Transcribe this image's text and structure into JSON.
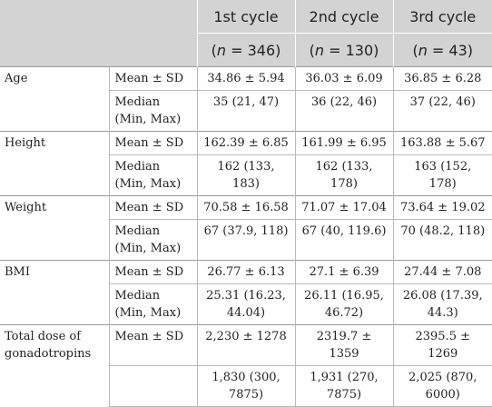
{
  "header": {
    "cycles": [
      {
        "label": "1st cycle",
        "n_prefix": "(",
        "n_symbol": "n",
        "n_value": " = 346)"
      },
      {
        "label": "2nd cycle",
        "n_prefix": "(",
        "n_symbol": "n",
        "n_value": " = 130)"
      },
      {
        "label": "3rd cycle",
        "n_prefix": "(",
        "n_symbol": "n",
        "n_value": " = 43)"
      }
    ]
  },
  "rows": [
    {
      "variable": "Age",
      "stat": "Mean ± SD",
      "values": [
        "34.86 ± 5.94",
        "36.03 ± 6.09",
        "36.85 ± 6.28"
      ]
    },
    {
      "variable": "",
      "stat": "Median (Min, Max)",
      "values": [
        "35 (21, 47)",
        "36 (22, 46)",
        "37 (22, 46)"
      ]
    },
    {
      "variable": "Height",
      "stat": "Mean ± SD",
      "values": [
        "162.39 ± 6.85",
        "161.99 ± 6.95",
        "163.88 ± 5.67"
      ]
    },
    {
      "variable": "",
      "stat": "Median (Min, Max)",
      "values": [
        "162 (133, 183)",
        "162 (133, 178)",
        "163 (152, 178)"
      ]
    },
    {
      "variable": "Weight",
      "stat": "Mean ± SD",
      "values": [
        "70.58 ± 16.58",
        "71.07 ± 17.04",
        "73.64 ± 19.02"
      ]
    },
    {
      "variable": "",
      "stat": "Median (Min, Max)",
      "values": [
        "67 (37.9, 118)",
        "67 (40, 119.6)",
        "70 (48.2, 118)"
      ]
    },
    {
      "variable": "BMI",
      "stat": "Mean ± SD",
      "values": [
        "26.77 ± 6.13",
        "27.1 ± 6.39",
        "27.44 ± 7.08"
      ]
    },
    {
      "variable": "",
      "stat": "Median (Min, Max)",
      "values": [
        "25.31 (16.23, 44.04)",
        "26.11 (16.95, 46.72)",
        "26.08 (17.39, 44.3)"
      ]
    },
    {
      "variable": "Total dose of gonadotropins",
      "stat": "Mean ± SD",
      "values": [
        "2,230 ± 1278",
        "2319.7 ± 1359",
        "2395.5 ± 1269"
      ]
    },
    {
      "variable": "",
      "stat": "",
      "values": [
        "1,830 (300, 7875)",
        "1,931 (270, 7875)",
        "2,025 (870, 6000)"
      ]
    }
  ]
}
